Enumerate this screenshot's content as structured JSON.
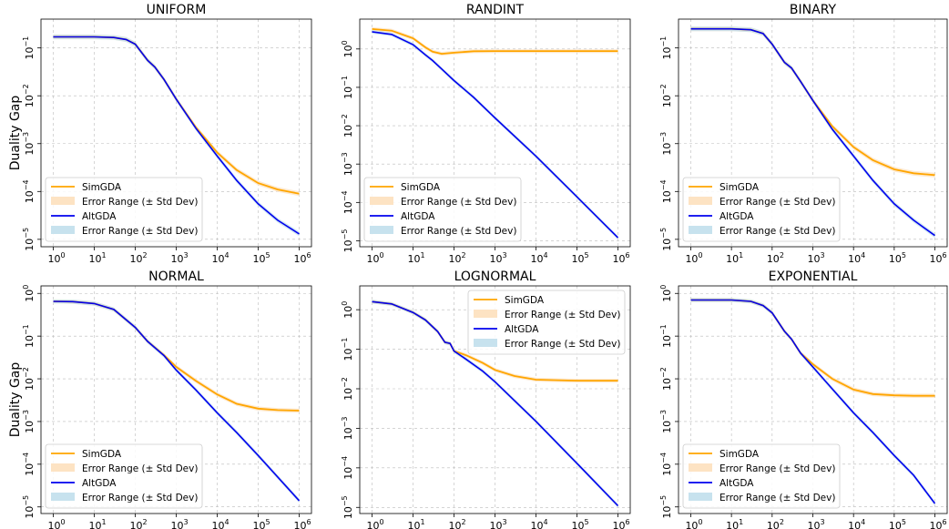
{
  "figure": {
    "ylabel": "Duality Gap"
  },
  "colors": {
    "simgda": "#ffa500",
    "altgda": "#0000ee",
    "sim_band": "#fde3c3",
    "alt_band": "#c7e2ee",
    "grid": "#bbbbbb"
  },
  "legend_labels": [
    "SimGDA",
    "Error Range (± Std Dev)",
    "AltGDA",
    "Error Range (± Std Dev)"
  ],
  "chart_data": [
    {
      "type": "line",
      "title": "UNIFORM",
      "xscale": "log",
      "yscale": "log",
      "xlim": [
        0.5,
        2000000
      ],
      "ylim": [
        7e-06,
        0.4
      ],
      "legend": "lower-left",
      "grid": true,
      "xticks": [
        "10^0",
        "10^1",
        "10^2",
        "10^3",
        "10^4",
        "10^5",
        "10^6"
      ],
      "yticks": [
        "10^-5",
        "10^-4",
        "10^-3",
        "10^-2",
        "10^-1"
      ],
      "series": [
        {
          "name": "SimGDA",
          "x": [
            1,
            10,
            30,
            60,
            100,
            200,
            300,
            500,
            1000,
            3000,
            10000,
            30000,
            100000,
            300000,
            1000000
          ],
          "y": [
            0.17,
            0.17,
            0.165,
            0.15,
            0.12,
            0.055,
            0.04,
            0.022,
            0.0085,
            0.0022,
            0.00065,
            0.00028,
            0.00015,
            0.00011,
            9e-05
          ]
        },
        {
          "name": "AltGDA",
          "x": [
            1,
            10,
            30,
            60,
            100,
            200,
            300,
            500,
            1000,
            3000,
            10000,
            30000,
            100000,
            300000,
            1000000
          ],
          "y": [
            0.17,
            0.17,
            0.165,
            0.15,
            0.12,
            0.055,
            0.04,
            0.022,
            0.0085,
            0.0021,
            0.00055,
            0.00017,
            5.5e-05,
            2.5e-05,
            1.3e-05
          ]
        }
      ]
    },
    {
      "type": "line",
      "title": "RANDINT",
      "xscale": "log",
      "yscale": "log",
      "xlim": [
        0.5,
        2000000
      ],
      "ylim": [
        7e-06,
        6
      ],
      "legend": "lower-left",
      "grid": true,
      "xticks": [
        "10^0",
        "10^1",
        "10^2",
        "10^3",
        "10^4",
        "10^5",
        "10^6"
      ],
      "yticks": [
        "10^-5",
        "10^-4",
        "10^-3",
        "10^-2",
        "10^-1",
        "10^0"
      ],
      "series": [
        {
          "name": "SimGDA",
          "x": [
            1,
            3,
            10,
            20,
            30,
            50,
            100,
            300,
            1000,
            10000,
            1000000
          ],
          "y": [
            3.3,
            3.0,
            1.9,
            1.1,
            0.85,
            0.75,
            0.8,
            0.87,
            0.88,
            0.88,
            0.88
          ]
        },
        {
          "name": "AltGDA",
          "x": [
            1,
            3,
            10,
            20,
            30,
            50,
            100,
            300,
            1000,
            10000,
            100000,
            1000000
          ],
          "y": [
            2.8,
            2.4,
            1.3,
            0.7,
            0.5,
            0.3,
            0.15,
            0.055,
            0.016,
            0.0016,
            0.00014,
            1.2e-05
          ]
        }
      ]
    },
    {
      "type": "line",
      "title": "BINARY",
      "xscale": "log",
      "yscale": "log",
      "xlim": [
        0.5,
        2000000
      ],
      "ylim": [
        7e-06,
        0.4
      ],
      "legend": "lower-left",
      "grid": true,
      "xticks": [
        "10^0",
        "10^1",
        "10^2",
        "10^3",
        "10^4",
        "10^5",
        "10^6"
      ],
      "yticks": [
        "10^-5",
        "10^-4",
        "10^-3",
        "10^-2",
        "10^-1"
      ],
      "series": [
        {
          "name": "SimGDA",
          "x": [
            1,
            10,
            30,
            60,
            100,
            200,
            300,
            500,
            1000,
            3000,
            10000,
            30000,
            100000,
            300000,
            1000000
          ],
          "y": [
            0.25,
            0.25,
            0.24,
            0.2,
            0.12,
            0.05,
            0.038,
            0.02,
            0.008,
            0.0023,
            0.00085,
            0.00045,
            0.00029,
            0.00024,
            0.00022
          ]
        },
        {
          "name": "AltGDA",
          "x": [
            1,
            10,
            30,
            60,
            100,
            200,
            300,
            500,
            1000,
            3000,
            10000,
            30000,
            100000,
            300000,
            1000000
          ],
          "y": [
            0.25,
            0.25,
            0.24,
            0.2,
            0.12,
            0.05,
            0.038,
            0.02,
            0.008,
            0.002,
            0.00055,
            0.00017,
            5.5e-05,
            2.5e-05,
            1.2e-05
          ]
        }
      ]
    },
    {
      "type": "line",
      "title": "NORMAL",
      "xscale": "log",
      "yscale": "log",
      "xlim": [
        0.5,
        2000000
      ],
      "ylim": [
        7e-06,
        1.5
      ],
      "legend": "lower-left",
      "grid": true,
      "xticks": [
        "10^0",
        "10^1",
        "10^2",
        "10^3",
        "10^4",
        "10^5",
        "10^6"
      ],
      "yticks": [
        "10^-5",
        "10^-4",
        "10^-3",
        "10^-2",
        "10^-1",
        "10^0"
      ],
      "series": [
        {
          "name": "SimGDA",
          "x": [
            1,
            3,
            10,
            30,
            100,
            200,
            500,
            1000,
            3000,
            10000,
            30000,
            100000,
            300000,
            1000000
          ],
          "y": [
            0.65,
            0.64,
            0.58,
            0.42,
            0.16,
            0.075,
            0.036,
            0.019,
            0.009,
            0.0043,
            0.0026,
            0.002,
            0.00185,
            0.0018
          ]
        },
        {
          "name": "AltGDA",
          "x": [
            1,
            3,
            10,
            30,
            100,
            200,
            500,
            1000,
            3000,
            10000,
            30000,
            100000,
            1000000
          ],
          "y": [
            0.65,
            0.64,
            0.58,
            0.42,
            0.16,
            0.075,
            0.035,
            0.016,
            0.0055,
            0.0016,
            0.00055,
            0.00016,
            1.4e-05
          ]
        }
      ]
    },
    {
      "type": "line",
      "title": "LOGNORMAL",
      "xscale": "log",
      "yscale": "log",
      "xlim": [
        0.5,
        2000000
      ],
      "ylim": [
        7e-06,
        4
      ],
      "legend": "top-right",
      "grid": true,
      "xticks": [
        "10^0",
        "10^1",
        "10^2",
        "10^3",
        "10^4",
        "10^5",
        "10^6"
      ],
      "yticks": [
        "10^-5",
        "10^-4",
        "10^-3",
        "10^-2",
        "10^-1",
        "10^0"
      ],
      "series": [
        {
          "name": "SimGDA",
          "x": [
            1,
            3,
            10,
            20,
            40,
            60,
            80,
            100,
            200,
            500,
            1000,
            3000,
            10000,
            100000,
            1000000
          ],
          "y": [
            1.6,
            1.4,
            0.85,
            0.55,
            0.28,
            0.15,
            0.14,
            0.09,
            0.07,
            0.045,
            0.03,
            0.021,
            0.017,
            0.016,
            0.016
          ]
        },
        {
          "name": "AltGDA",
          "x": [
            1,
            3,
            10,
            20,
            40,
            60,
            80,
            100,
            200,
            500,
            1000,
            10000,
            100000,
            1000000
          ],
          "y": [
            1.6,
            1.4,
            0.85,
            0.55,
            0.28,
            0.15,
            0.14,
            0.09,
            0.055,
            0.028,
            0.015,
            0.0015,
            0.00013,
            1.1e-05
          ]
        }
      ]
    },
    {
      "type": "line",
      "title": "EXPONENTIAL",
      "xscale": "log",
      "yscale": "log",
      "xlim": [
        0.5,
        2000000
      ],
      "ylim": [
        7e-06,
        1.5
      ],
      "legend": "lower-left",
      "grid": true,
      "xticks": [
        "10^0",
        "10^1",
        "10^2",
        "10^3",
        "10^4",
        "10^5",
        "10^6"
      ],
      "yticks": [
        "10^-5",
        "10^-4",
        "10^-3",
        "10^-2",
        "10^-1",
        "10^0"
      ],
      "series": [
        {
          "name": "SimGDA",
          "x": [
            1,
            10,
            30,
            60,
            100,
            200,
            300,
            500,
            1000,
            3000,
            10000,
            30000,
            100000,
            300000,
            1000000
          ],
          "y": [
            0.7,
            0.7,
            0.65,
            0.52,
            0.35,
            0.13,
            0.085,
            0.04,
            0.022,
            0.01,
            0.0056,
            0.0044,
            0.0041,
            0.004,
            0.004
          ]
        },
        {
          "name": "AltGDA",
          "x": [
            1,
            10,
            30,
            60,
            100,
            200,
            300,
            500,
            1000,
            3000,
            10000,
            30000,
            100000,
            300000,
            1000000
          ],
          "y": [
            0.7,
            0.7,
            0.65,
            0.52,
            0.35,
            0.13,
            0.085,
            0.04,
            0.019,
            0.0058,
            0.0016,
            0.00055,
            0.00016,
            5.5e-05,
            1.2e-05
          ]
        }
      ]
    }
  ]
}
